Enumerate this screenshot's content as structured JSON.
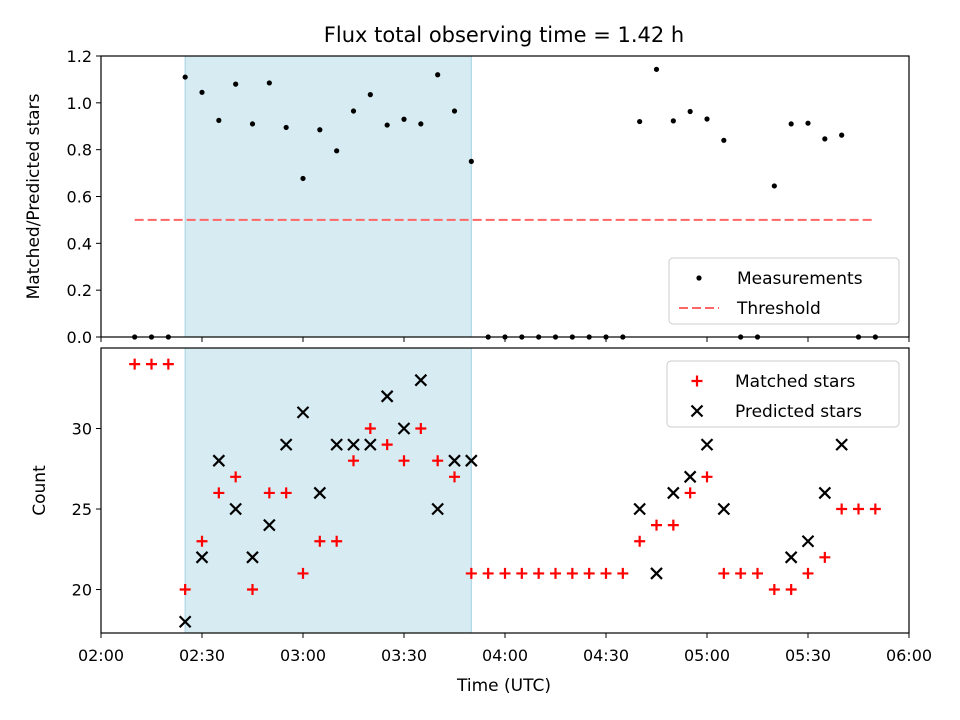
{
  "figure": {
    "title": "Flux total observing time = 1.42 h",
    "xlabel": "Time (UTC)"
  },
  "colors": {
    "shade": "#add8e6",
    "measurement": "#000000",
    "threshold": "#ff6666",
    "matched": "#ff0000",
    "predicted": "#000000"
  },
  "chart_data": [
    {
      "type": "scatter",
      "ylabel": "Matched/Predicted stars",
      "ylim": [
        0,
        1.2
      ],
      "yticks": [
        0.0,
        0.2,
        0.4,
        0.6,
        0.8,
        1.0,
        1.2
      ],
      "xlim": [
        "02:00",
        "06:00"
      ],
      "grid": false,
      "legend_position": "lower-right",
      "shaded_interval": [
        "02:25",
        "03:50"
      ],
      "series": [
        {
          "name": "Measurements",
          "marker": "dot",
          "points": [
            [
              "02:10",
              0
            ],
            [
              "02:15",
              0
            ],
            [
              "02:20",
              0
            ],
            [
              "02:25",
              1.11
            ],
            [
              "02:30",
              1.045
            ],
            [
              "02:35",
              0.925
            ],
            [
              "02:40",
              1.08
            ],
            [
              "02:45",
              0.91
            ],
            [
              "02:50",
              1.085
            ],
            [
              "02:55",
              0.895
            ],
            [
              "03:00",
              0.677
            ],
            [
              "03:05",
              0.885
            ],
            [
              "03:10",
              0.795
            ],
            [
              "03:15",
              0.965
            ],
            [
              "03:20",
              1.035
            ],
            [
              "03:25",
              0.905
            ],
            [
              "03:30",
              0.93
            ],
            [
              "03:35",
              0.91
            ],
            [
              "03:40",
              1.12
            ],
            [
              "03:45",
              0.965
            ],
            [
              "03:50",
              0.75
            ],
            [
              "03:55",
              0
            ],
            [
              "04:00",
              0
            ],
            [
              "04:05",
              0
            ],
            [
              "04:10",
              0
            ],
            [
              "04:15",
              0
            ],
            [
              "04:20",
              0
            ],
            [
              "04:25",
              0
            ],
            [
              "04:30",
              0
            ],
            [
              "04:35",
              0
            ],
            [
              "04:40",
              0.92
            ],
            [
              "04:45",
              1.143
            ],
            [
              "04:50",
              0.923
            ],
            [
              "04:55",
              0.963
            ],
            [
              "05:00",
              0.931
            ],
            [
              "05:05",
              0.84
            ],
            [
              "05:10",
              0
            ],
            [
              "05:15",
              0
            ],
            [
              "05:20",
              0.645
            ],
            [
              "05:25",
              0.91
            ],
            [
              "05:30",
              0.913
            ],
            [
              "05:35",
              0.846
            ],
            [
              "05:40",
              0.862
            ],
            [
              "05:45",
              0
            ],
            [
              "05:50",
              0
            ]
          ]
        },
        {
          "name": "Threshold",
          "style": "dashed-line",
          "points": [
            [
              "02:10",
              0.5
            ],
            [
              "05:50",
              0.5
            ]
          ]
        }
      ]
    },
    {
      "type": "scatter",
      "ylabel": "Count",
      "ylim": [
        17.3,
        35.0
      ],
      "yticks": [
        20,
        25,
        30
      ],
      "xlim": [
        "02:00",
        "06:00"
      ],
      "xticks": [
        "02:00",
        "02:30",
        "03:00",
        "03:30",
        "04:00",
        "04:30",
        "05:00",
        "05:30",
        "06:00"
      ],
      "grid": false,
      "legend_position": "upper-right",
      "shaded_interval": [
        "02:25",
        "03:50"
      ],
      "series": [
        {
          "name": "Matched stars",
          "marker": "plus",
          "points": [
            [
              "02:10",
              34
            ],
            [
              "02:15",
              34
            ],
            [
              "02:20",
              34
            ],
            [
              "02:25",
              20
            ],
            [
              "02:30",
              23
            ],
            [
              "02:35",
              26
            ],
            [
              "02:40",
              27
            ],
            [
              "02:45",
              20
            ],
            [
              "02:50",
              26
            ],
            [
              "02:55",
              26
            ],
            [
              "03:00",
              21
            ],
            [
              "03:05",
              23
            ],
            [
              "03:10",
              23
            ],
            [
              "03:15",
              28
            ],
            [
              "03:20",
              30
            ],
            [
              "03:25",
              29
            ],
            [
              "03:30",
              28
            ],
            [
              "03:35",
              30
            ],
            [
              "03:40",
              28
            ],
            [
              "03:45",
              27
            ],
            [
              "03:50",
              21
            ],
            [
              "03:55",
              21
            ],
            [
              "04:00",
              21
            ],
            [
              "04:05",
              21
            ],
            [
              "04:10",
              21
            ],
            [
              "04:15",
              21
            ],
            [
              "04:20",
              21
            ],
            [
              "04:25",
              21
            ],
            [
              "04:30",
              21
            ],
            [
              "04:35",
              21
            ],
            [
              "04:40",
              23
            ],
            [
              "04:45",
              24
            ],
            [
              "04:50",
              24
            ],
            [
              "04:55",
              26
            ],
            [
              "05:00",
              27
            ],
            [
              "05:05",
              21
            ],
            [
              "05:10",
              21
            ],
            [
              "05:15",
              21
            ],
            [
              "05:20",
              20
            ],
            [
              "05:25",
              20
            ],
            [
              "05:30",
              21
            ],
            [
              "05:35",
              22
            ],
            [
              "05:40",
              25
            ],
            [
              "05:45",
              25
            ],
            [
              "05:50",
              25
            ]
          ]
        },
        {
          "name": "Predicted stars",
          "marker": "x",
          "points": [
            [
              "02:25",
              18
            ],
            [
              "02:30",
              22
            ],
            [
              "02:35",
              28
            ],
            [
              "02:40",
              25
            ],
            [
              "02:45",
              22
            ],
            [
              "02:50",
              24
            ],
            [
              "02:55",
              29
            ],
            [
              "03:00",
              31
            ],
            [
              "03:05",
              26
            ],
            [
              "03:10",
              29
            ],
            [
              "03:15",
              29
            ],
            [
              "03:20",
              29
            ],
            [
              "03:25",
              32
            ],
            [
              "03:30",
              30
            ],
            [
              "03:35",
              33
            ],
            [
              "03:40",
              25
            ],
            [
              "03:45",
              28
            ],
            [
              "03:50",
              28
            ],
            [
              "04:40",
              25
            ],
            [
              "04:45",
              21
            ],
            [
              "04:50",
              26
            ],
            [
              "04:55",
              27
            ],
            [
              "05:00",
              29
            ],
            [
              "05:05",
              25
            ],
            [
              "05:25",
              22
            ],
            [
              "05:30",
              23
            ],
            [
              "05:35",
              26
            ],
            [
              "05:40",
              29
            ]
          ]
        }
      ]
    }
  ]
}
